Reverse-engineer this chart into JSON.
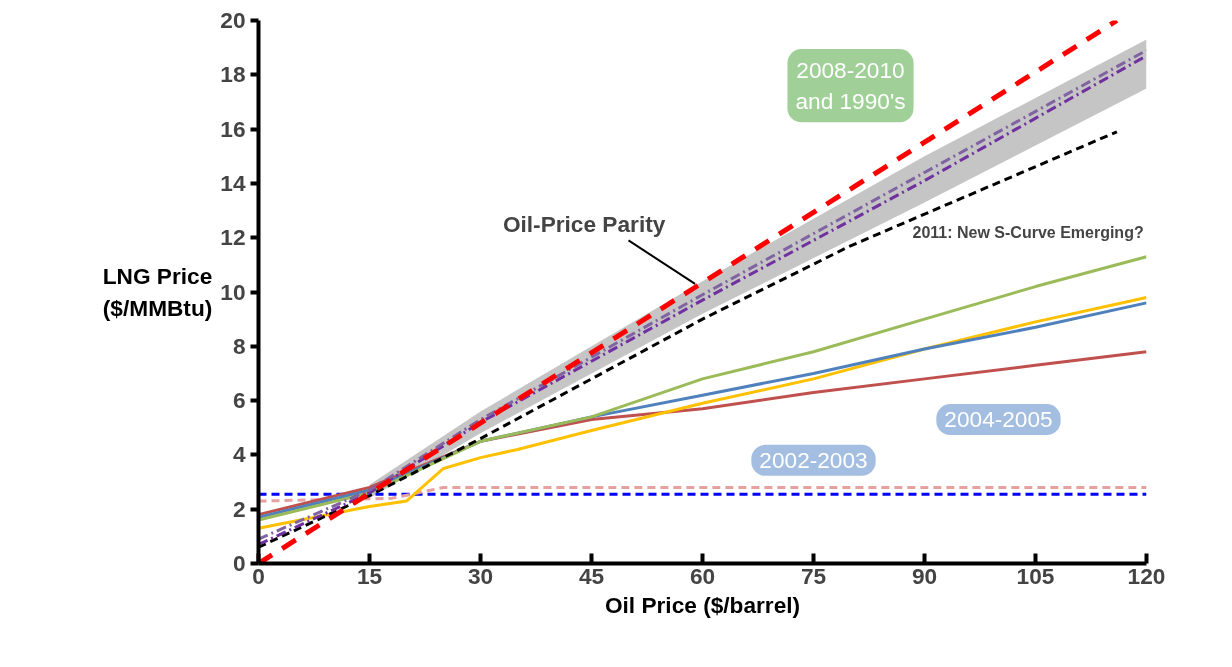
{
  "chart_data": {
    "type": "line",
    "xlabel": "Oil Price ($/barrel)",
    "ylabel": "LNG Price\n($/MMBtu)",
    "xlim": [
      0,
      120
    ],
    "ylim": [
      0,
      20
    ],
    "xticks": [
      0,
      15,
      30,
      45,
      60,
      75,
      90,
      105,
      120
    ],
    "yticks": [
      0,
      2,
      4,
      6,
      8,
      10,
      12,
      14,
      16,
      18,
      20
    ],
    "grid": false,
    "marker": "none",
    "series": [
      {
        "color": "#8064a2",
        "line_style": "dashdot",
        "x": [
          0,
          15,
          30,
          60,
          90,
          120
        ],
        "values": [
          0.9,
          2.7,
          5.3,
          9.9,
          14.4,
          18.9
        ],
        "lower": [
          null,
          2.4,
          4.8,
          9.2,
          13.3,
          17.5
        ],
        "upper": [
          null,
          2.9,
          5.6,
          10.4,
          15.0,
          19.3
        ]
      },
      {
        "color": "#7030a0",
        "line_style": "dashdot",
        "x": [
          0,
          15,
          30,
          60,
          90,
          120
        ],
        "values": [
          0.7,
          2.6,
          5.2,
          9.7,
          14.1,
          18.7
        ]
      },
      {
        "color": "#000000",
        "line_style": "dashed",
        "x": [
          0,
          15,
          30,
          60,
          80,
          116
        ],
        "values": [
          0.6,
          2.5,
          4.6,
          9.0,
          11.7,
          15.9
        ]
      },
      {
        "color": "#ff0000",
        "line_style": "dashed",
        "x": [
          0,
          116
        ],
        "values": [
          0,
          20
        ]
      },
      {
        "color": "#9bbb59",
        "line_style": "solid",
        "x": [
          0,
          15,
          30,
          45,
          60,
          75,
          90,
          105,
          120
        ],
        "values": [
          1.6,
          2.6,
          4.5,
          5.4,
          6.8,
          7.8,
          9.0,
          10.2,
          11.3
        ]
      },
      {
        "color": "#4f81bd",
        "line_style": "solid",
        "x": [
          0,
          15,
          30,
          45,
          60,
          75,
          90,
          105,
          120
        ],
        "values": [
          1.7,
          2.7,
          4.5,
          5.4,
          6.2,
          7.0,
          7.9,
          8.7,
          9.6
        ]
      },
      {
        "color": "#ffc000",
        "line_style": "solid",
        "x": [
          0,
          15,
          20,
          25,
          30,
          35,
          45,
          60,
          75,
          90,
          105,
          120
        ],
        "values": [
          1.3,
          2.1,
          2.3,
          3.5,
          3.9,
          4.2,
          4.9,
          5.9,
          6.8,
          7.9,
          8.9,
          9.8
        ]
      },
      {
        "color": "#c0504d",
        "line_style": "solid",
        "x": [
          0,
          15,
          30,
          45,
          60,
          75,
          90,
          105,
          120
        ],
        "values": [
          1.8,
          2.8,
          4.5,
          5.3,
          5.7,
          6.3,
          6.8,
          7.3,
          7.8
        ]
      },
      {
        "color": "#e6a0a0",
        "line_style": "dashed",
        "x": [
          0,
          18,
          25,
          120
        ],
        "values": [
          2.3,
          2.4,
          2.8,
          2.8
        ]
      },
      {
        "color": "#0000ff",
        "line_style": "dashed",
        "x": [
          0,
          120
        ],
        "values": [
          2.55,
          2.55
        ]
      }
    ],
    "annotations": [
      {
        "text": "Oil-Price Parity",
        "x": 59,
        "y": 10.3
      },
      "2011: New S-Curve Emerging?",
      "2008-2010\nand 1990's",
      "2004-2005",
      "2002-2003"
    ]
  }
}
